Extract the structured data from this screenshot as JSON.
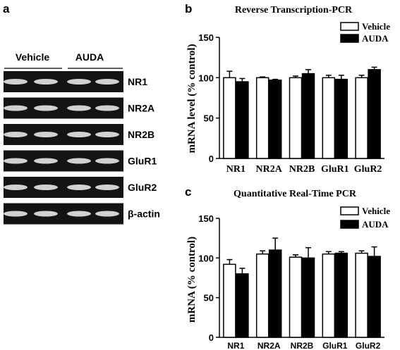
{
  "panels": {
    "a": "a",
    "b": "b",
    "c": "c"
  },
  "gel": {
    "group_labels": [
      "Vehicle",
      "AUDA"
    ],
    "band_labels": [
      "NR1",
      "NR2A",
      "NR2B",
      "GluR1",
      "GluR2",
      "β-actin"
    ]
  },
  "colors": {
    "vehicle_fill": "#ffffff",
    "auda_fill": "#000000",
    "gel_background": "#141414",
    "band": "#e6e6e6"
  },
  "chart_data": [
    {
      "id": "b",
      "type": "bar",
      "title": "Reverse Transcription-PCR",
      "ylabel": "mRNA level (% control)",
      "xlabel": "",
      "categories": [
        "NR1",
        "NR2A",
        "NR2B",
        "GluR1",
        "GluR2"
      ],
      "ylim": [
        0,
        150
      ],
      "yticks": [
        0,
        50,
        100,
        150
      ],
      "legend_position": "top-right",
      "series": [
        {
          "name": "Vehicle",
          "values": [
            100,
            100,
            100,
            100,
            100
          ],
          "errors": [
            8,
            1,
            2,
            3,
            3
          ]
        },
        {
          "name": "AUDA",
          "values": [
            95,
            97,
            105,
            98,
            110
          ],
          "errors": [
            4,
            1,
            5,
            5,
            3
          ]
        }
      ]
    },
    {
      "id": "c",
      "type": "bar",
      "title": "Quantitative Real-Time PCR",
      "ylabel": "mRNA (% control)",
      "xlabel": "",
      "categories": [
        "NR1",
        "NR2A",
        "NR2B",
        "GluR1",
        "GluR2"
      ],
      "ylim": [
        0,
        150
      ],
      "yticks": [
        0,
        50,
        100,
        150
      ],
      "legend_position": "top-right",
      "series": [
        {
          "name": "Vehicle",
          "values": [
            92,
            105,
            101,
            105,
            106
          ],
          "errors": [
            6,
            4,
            3,
            3,
            3
          ]
        },
        {
          "name": "AUDA",
          "values": [
            80,
            110,
            100,
            106,
            102
          ],
          "errors": [
            7,
            15,
            13,
            2,
            12
          ]
        }
      ]
    }
  ]
}
